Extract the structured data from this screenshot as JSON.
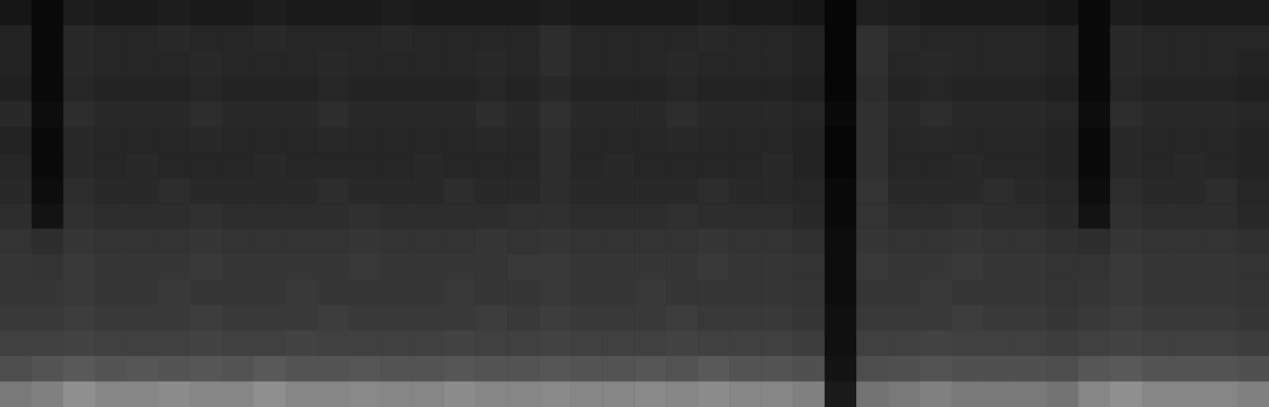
{
  "chart_data": {
    "type": "heatmap",
    "tick_labels": false,
    "grid": false,
    "color_range": [
      0,
      80
    ],
    "cells": [
      [
        7,
        3,
        9,
        8,
        8,
        9,
        8,
        8,
        9,
        8,
        8,
        8,
        9,
        8,
        8,
        8,
        8,
        9,
        8,
        8,
        8,
        8,
        9,
        8,
        8,
        7,
        2,
        10,
        9,
        8,
        8,
        8,
        8,
        7,
        3,
        9,
        8,
        8,
        8,
        8
      ],
      [
        11,
        3,
        13,
        12,
        12,
        13,
        12,
        12,
        13,
        12,
        12,
        12,
        13,
        12,
        12,
        12,
        12,
        14,
        12,
        12,
        12,
        12,
        13,
        12,
        12,
        11,
        2,
        15,
        13,
        12,
        12,
        12,
        12,
        11,
        3,
        13,
        12,
        12,
        12,
        12
      ],
      [
        11,
        3,
        13,
        12,
        12,
        12,
        13,
        12,
        12,
        12,
        13,
        12,
        12,
        12,
        12,
        13,
        12,
        14,
        12,
        12,
        12,
        13,
        12,
        12,
        12,
        11,
        2,
        15,
        12,
        13,
        12,
        12,
        12,
        11,
        3,
        13,
        12,
        12,
        12,
        11
      ],
      [
        10,
        3,
        12,
        11,
        11,
        11,
        12,
        11,
        11,
        11,
        12,
        11,
        11,
        11,
        11,
        12,
        11,
        13,
        11,
        11,
        11,
        12,
        11,
        11,
        11,
        10,
        2,
        14,
        11,
        12,
        11,
        11,
        11,
        10,
        3,
        12,
        11,
        11,
        11,
        10
      ],
      [
        13,
        4,
        14,
        13,
        13,
        13,
        14,
        13,
        13,
        13,
        14,
        13,
        13,
        13,
        13,
        14,
        13,
        15,
        13,
        13,
        13,
        14,
        13,
        13,
        13,
        12,
        3,
        15,
        13,
        14,
        13,
        13,
        13,
        12,
        4,
        14,
        13,
        13,
        13,
        12
      ],
      [
        11,
        3,
        13,
        12,
        12,
        12,
        13,
        12,
        12,
        12,
        13,
        12,
        12,
        12,
        12,
        13,
        12,
        14,
        12,
        12,
        12,
        13,
        12,
        12,
        12,
        11,
        2,
        15,
        12,
        13,
        12,
        12,
        12,
        11,
        3,
        13,
        12,
        12,
        12,
        11
      ],
      [
        12,
        3,
        13,
        12,
        13,
        12,
        12,
        12,
        13,
        12,
        12,
        12,
        12,
        13,
        12,
        12,
        12,
        14,
        12,
        13,
        12,
        12,
        12,
        12,
        13,
        11,
        2,
        15,
        12,
        12,
        13,
        12,
        12,
        11,
        3,
        13,
        12,
        13,
        12,
        11
      ],
      [
        13,
        4,
        14,
        13,
        13,
        14,
        13,
        13,
        13,
        13,
        14,
        13,
        13,
        13,
        14,
        13,
        13,
        14,
        13,
        13,
        13,
        13,
        14,
        13,
        13,
        12,
        3,
        16,
        13,
        13,
        13,
        14,
        13,
        12,
        4,
        14,
        13,
        13,
        14,
        12
      ],
      [
        14,
        6,
        15,
        14,
        14,
        14,
        15,
        14,
        14,
        14,
        14,
        15,
        14,
        14,
        14,
        14,
        15,
        15,
        14,
        14,
        14,
        15,
        14,
        14,
        14,
        13,
        3,
        16,
        14,
        14,
        15,
        14,
        14,
        13,
        6,
        15,
        14,
        14,
        14,
        13
      ],
      [
        16,
        14,
        17,
        16,
        16,
        16,
        17,
        16,
        16,
        16,
        16,
        17,
        16,
        16,
        16,
        17,
        16,
        17,
        16,
        16,
        16,
        16,
        17,
        16,
        16,
        15,
        4,
        17,
        16,
        16,
        17,
        16,
        16,
        15,
        14,
        17,
        16,
        16,
        16,
        15
      ],
      [
        17,
        16,
        18,
        17,
        17,
        17,
        18,
        17,
        17,
        17,
        17,
        18,
        17,
        17,
        17,
        17,
        18,
        18,
        17,
        17,
        17,
        17,
        18,
        17,
        17,
        16,
        4,
        18,
        17,
        17,
        18,
        17,
        17,
        16,
        16,
        18,
        17,
        17,
        17,
        16
      ],
      [
        17,
        17,
        18,
        17,
        17,
        18,
        17,
        17,
        17,
        18,
        17,
        17,
        17,
        17,
        18,
        17,
        17,
        18,
        17,
        17,
        18,
        17,
        17,
        17,
        17,
        16,
        4,
        17,
        17,
        18,
        17,
        17,
        17,
        16,
        17,
        18,
        17,
        17,
        17,
        16
      ],
      [
        18,
        18,
        19,
        18,
        18,
        18,
        19,
        18,
        18,
        18,
        19,
        18,
        18,
        18,
        18,
        19,
        18,
        19,
        18,
        18,
        18,
        19,
        18,
        18,
        18,
        17,
        5,
        18,
        18,
        18,
        19,
        18,
        18,
        17,
        18,
        19,
        18,
        18,
        18,
        17
      ],
      [
        20,
        20,
        21,
        20,
        20,
        20,
        21,
        20,
        20,
        21,
        20,
        20,
        20,
        20,
        21,
        20,
        20,
        21,
        20,
        20,
        20,
        21,
        20,
        20,
        20,
        19,
        5,
        20,
        20,
        21,
        20,
        20,
        20,
        19,
        20,
        21,
        20,
        20,
        20,
        19
      ],
      [
        24,
        26,
        28,
        26,
        27,
        26,
        27,
        26,
        28,
        26,
        26,
        27,
        26,
        26,
        27,
        26,
        26,
        27,
        26,
        26,
        27,
        26,
        28,
        26,
        26,
        25,
        6,
        24,
        25,
        26,
        25,
        25,
        25,
        24,
        27,
        28,
        26,
        26,
        26,
        25
      ],
      [
        38,
        40,
        45,
        42,
        42,
        44,
        42,
        42,
        45,
        42,
        42,
        43,
        42,
        42,
        44,
        42,
        42,
        43,
        42,
        42,
        43,
        42,
        44,
        42,
        42,
        40,
        8,
        36,
        38,
        40,
        38,
        38,
        38,
        36,
        42,
        45,
        42,
        42,
        42,
        40
      ]
    ]
  }
}
